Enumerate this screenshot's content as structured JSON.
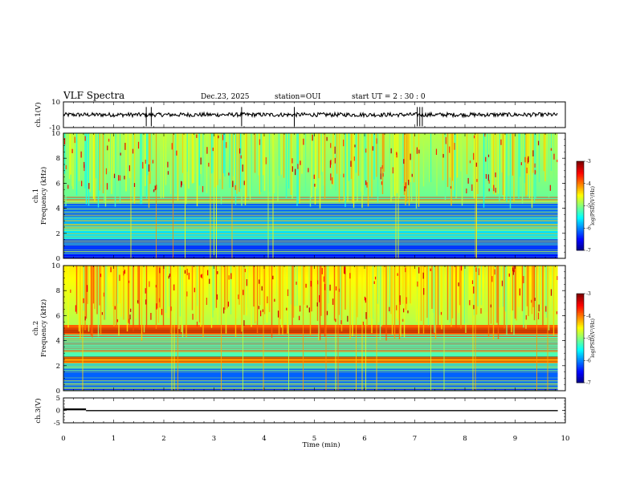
{
  "header": {
    "title": "VLF Spectra",
    "date": "Dec.23, 2025",
    "station": "station=OUI",
    "start_ut": "start UT =  2 : 30 : 0"
  },
  "chart_data": [
    {
      "type": "line",
      "name": "ch1-waveform",
      "ylabel": "ch.1(V)",
      "ylim": [
        -10,
        10
      ],
      "y_ticks": [
        "10",
        "-10"
      ],
      "baseline": 0,
      "spikes_min": [
        1.65,
        1.75,
        3.55,
        4.6,
        7.05,
        7.1,
        7.15
      ],
      "x_range": [
        0,
        9.85
      ]
    },
    {
      "type": "heatmap",
      "name": "ch1-spectrogram",
      "ylabel": "ch.1\nFrequency (kHz)",
      "ylim": [
        0,
        10
      ],
      "y_ticks": [
        "0",
        "2",
        "4",
        "6",
        "8",
        "10"
      ],
      "x_range": [
        0,
        9.85
      ],
      "colorbar": {
        "label": "log(PSD)(V²/Hz)",
        "range": [
          -7,
          -3
        ],
        "ticks": [
          "-3",
          "-4",
          "-5",
          "-6",
          "-7"
        ]
      }
    },
    {
      "type": "heatmap",
      "name": "ch2-spectrogram",
      "ylabel": "ch.2\nFrequency (kHz)",
      "ylim": [
        0,
        10
      ],
      "y_ticks": [
        "0",
        "2",
        "4",
        "6",
        "8",
        "10"
      ],
      "x_range": [
        0,
        9.85
      ],
      "colorbar": {
        "label": "log(PSD)(V²/Hz)",
        "range": [
          -7,
          -3
        ],
        "ticks": [
          "-3",
          "-4",
          "-5",
          "-6",
          "-7"
        ]
      }
    },
    {
      "type": "line",
      "name": "ch3-trace",
      "ylabel": "ch.3(V)",
      "ylim": [
        -5,
        5
      ],
      "y_ticks": [
        "5",
        "0",
        "-5"
      ],
      "segments": [
        {
          "x": [
            0,
            0.45
          ],
          "y": [
            0.4,
            0.4
          ]
        },
        {
          "x": [
            0.45,
            9.85
          ],
          "y": [
            -0.1,
            -0.1
          ]
        }
      ]
    }
  ],
  "x_axis": {
    "label": "Time (min)",
    "ticks": [
      "0",
      "1",
      "2",
      "3",
      "4",
      "5",
      "6",
      "7",
      "8",
      "9",
      "10"
    ],
    "range": [
      0,
      10
    ]
  },
  "colors": {
    "jet": [
      "#000090",
      "#0010ff",
      "#0080ff",
      "#00e0ff",
      "#40ff80",
      "#a0ff20",
      "#ffe000",
      "#ff6000",
      "#e00000",
      "#800000"
    ]
  }
}
